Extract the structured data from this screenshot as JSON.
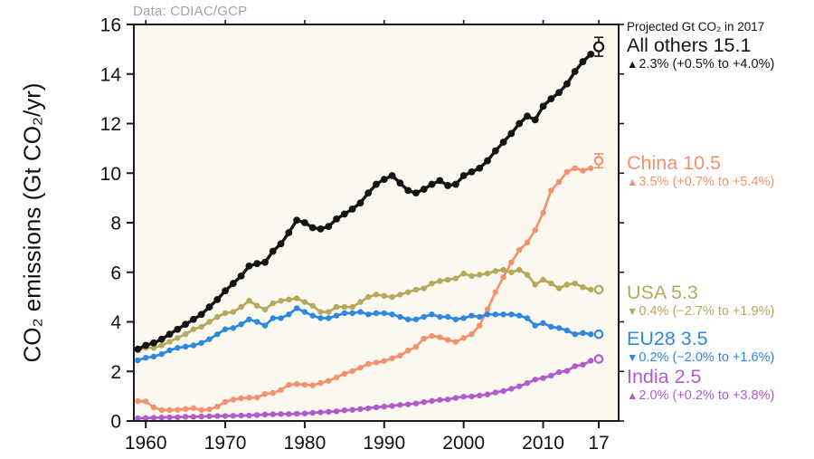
{
  "chart_data": {
    "type": "line",
    "source_label": "Data: CDIAC/GCP",
    "ylabel": "CO₂ emissions (Gt CO₂/yr)",
    "xlabel": "",
    "ylim": [
      0,
      16
    ],
    "xlim": [
      1958.5,
      2019.5
    ],
    "yticks": [
      0,
      2,
      4,
      6,
      8,
      10,
      12,
      14,
      16
    ],
    "xticks": [
      {
        "v": 1960,
        "label": "1960"
      },
      {
        "v": 1970,
        "label": "1970"
      },
      {
        "v": 1980,
        "label": "1980"
      },
      {
        "v": 1990,
        "label": "1990"
      },
      {
        "v": 2000,
        "label": "2000"
      },
      {
        "v": 2010,
        "label": "2010"
      },
      {
        "v": 2017,
        "label": "17"
      }
    ],
    "grid": false,
    "plot_bg": "#faf8ef",
    "frame_color": "#1a1a1a",
    "years_start": 1959,
    "series": [
      {
        "name": "All others",
        "color": "#141414",
        "projection": {
          "year": 2017,
          "value": 15.1,
          "low": 14.72,
          "high": 15.48
        },
        "values": [
          2.9,
          3.05,
          3.15,
          3.3,
          3.5,
          3.7,
          3.9,
          4.1,
          4.3,
          4.6,
          4.9,
          5.25,
          5.55,
          5.85,
          6.25,
          6.35,
          6.4,
          6.85,
          7.15,
          7.6,
          8.1,
          8.0,
          7.8,
          7.75,
          7.85,
          8.15,
          8.35,
          8.55,
          8.8,
          9.2,
          9.55,
          9.75,
          9.9,
          9.6,
          9.3,
          9.2,
          9.35,
          9.55,
          9.7,
          9.5,
          9.55,
          9.9,
          10.05,
          10.2,
          10.5,
          10.9,
          11.25,
          11.6,
          12.0,
          12.3,
          12.15,
          12.7,
          13.0,
          13.25,
          13.6,
          14.1,
          14.5,
          14.8
        ]
      },
      {
        "name": "China",
        "color": "#f2936e",
        "projection": {
          "year": 2017,
          "value": 10.5,
          "low": 10.22,
          "high": 10.78
        },
        "values": [
          0.8,
          0.79,
          0.55,
          0.44,
          0.44,
          0.45,
          0.48,
          0.52,
          0.44,
          0.47,
          0.58,
          0.77,
          0.86,
          0.92,
          0.94,
          0.95,
          1.09,
          1.13,
          1.25,
          1.46,
          1.49,
          1.46,
          1.44,
          1.53,
          1.62,
          1.76,
          1.9,
          2.01,
          2.15,
          2.3,
          2.36,
          2.42,
          2.53,
          2.64,
          2.84,
          2.99,
          3.32,
          3.43,
          3.38,
          3.27,
          3.19,
          3.35,
          3.5,
          3.85,
          4.5,
          5.2,
          5.8,
          6.4,
          6.9,
          7.2,
          7.7,
          8.4,
          9.3,
          9.65,
          10.05,
          10.2,
          10.1,
          10.2
        ]
      },
      {
        "name": "USA",
        "color": "#b3aa5e",
        "projection": {
          "year": 2017,
          "value": 5.3,
          "low": null,
          "high": null
        },
        "values": [
          2.85,
          2.95,
          2.95,
          3.05,
          3.2,
          3.35,
          3.5,
          3.7,
          3.8,
          4.0,
          4.2,
          4.35,
          4.4,
          4.6,
          4.85,
          4.65,
          4.5,
          4.75,
          4.85,
          4.9,
          4.95,
          4.8,
          4.65,
          4.4,
          4.4,
          4.6,
          4.6,
          4.6,
          4.8,
          5.0,
          5.1,
          5.05,
          5.0,
          5.1,
          5.2,
          5.3,
          5.35,
          5.55,
          5.65,
          5.7,
          5.75,
          5.95,
          5.85,
          5.9,
          5.95,
          6.05,
          6.1,
          6.0,
          6.1,
          5.9,
          5.5,
          5.7,
          5.55,
          5.35,
          5.5,
          5.55,
          5.4,
          5.3
        ]
      },
      {
        "name": "EU28",
        "color": "#2e87e0",
        "projection": {
          "year": 2017,
          "value": 3.5,
          "low": null,
          "high": null
        },
        "values": [
          2.45,
          2.55,
          2.6,
          2.7,
          2.85,
          2.95,
          3.0,
          3.05,
          3.15,
          3.3,
          3.5,
          3.7,
          3.75,
          3.9,
          4.1,
          4.0,
          3.85,
          4.15,
          4.15,
          4.3,
          4.55,
          4.4,
          4.25,
          4.15,
          4.15,
          4.25,
          4.35,
          4.35,
          4.4,
          4.3,
          4.35,
          4.35,
          4.3,
          4.2,
          4.1,
          4.1,
          4.2,
          4.3,
          4.2,
          4.2,
          4.1,
          4.15,
          4.25,
          4.2,
          4.3,
          4.3,
          4.3,
          4.3,
          4.25,
          4.15,
          3.85,
          3.95,
          3.8,
          3.75,
          3.65,
          3.5,
          3.55,
          3.5
        ]
      },
      {
        "name": "India",
        "color": "#b05bce",
        "projection": {
          "year": 2017,
          "value": 2.5,
          "low": null,
          "high": null
        },
        "values": [
          0.11,
          0.12,
          0.13,
          0.14,
          0.15,
          0.15,
          0.17,
          0.17,
          0.18,
          0.19,
          0.2,
          0.2,
          0.21,
          0.22,
          0.22,
          0.24,
          0.26,
          0.27,
          0.28,
          0.28,
          0.29,
          0.3,
          0.33,
          0.35,
          0.37,
          0.39,
          0.43,
          0.45,
          0.48,
          0.51,
          0.55,
          0.58,
          0.61,
          0.65,
          0.67,
          0.71,
          0.76,
          0.81,
          0.85,
          0.87,
          0.93,
          0.98,
          0.99,
          1.03,
          1.07,
          1.15,
          1.21,
          1.3,
          1.4,
          1.53,
          1.67,
          1.73,
          1.83,
          1.97,
          2.02,
          2.21,
          2.27,
          2.43
        ]
      }
    ],
    "legend": {
      "header": "Projected Gt CO₂ in 2017",
      "entries": [
        {
          "label": "All others 15.1",
          "trend": "▲",
          "pct": "2.3% (+0.5% to +4.0%)",
          "color": "#141414"
        },
        {
          "label": "China 10.5",
          "trend": "▲",
          "pct": "3.5% (+0.7% to +5.4%)",
          "color": "#f2936e"
        },
        {
          "label": "USA 5.3",
          "trend": "▼",
          "pct": "0.4% (−2.7% to +1.9%)",
          "color": "#b3aa5e"
        },
        {
          "label": "EU28 3.5",
          "trend": "▼",
          "pct": "0.2% (−2.0% to +1.6%)",
          "color": "#2e87e0"
        },
        {
          "label": "India 2.5",
          "trend": "▲",
          "pct": "2.0% (+0.2% to +3.8%)",
          "color": "#b05bce"
        }
      ]
    }
  }
}
